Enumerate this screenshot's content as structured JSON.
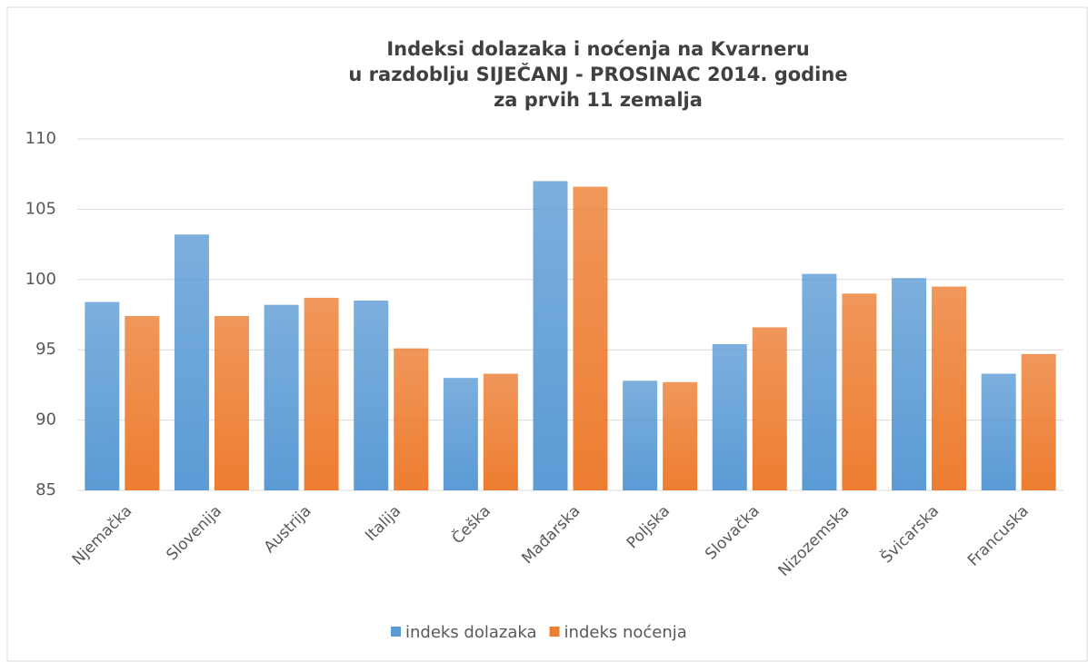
{
  "chart_data": {
    "type": "bar",
    "title": [
      "Indeksi dolazaka i noćenja na Kvarneru",
      "u razdoblju SIJEČANJ - PROSINAC 2014. godine",
      "za prvih 11 zemalja"
    ],
    "categories": [
      "Njemačka",
      "Slovenija",
      "Austrija",
      "Italija",
      "Češka",
      "Mađarska",
      "Poljska",
      "Slovačka",
      "Nizozemska",
      "Švicarska",
      "Francuska"
    ],
    "series": [
      {
        "name": "indeks dolazaka",
        "color": "#5b9bd5",
        "values": [
          98.4,
          103.2,
          98.2,
          98.5,
          93.0,
          107.0,
          92.8,
          95.4,
          100.4,
          100.1,
          93.3
        ]
      },
      {
        "name": "indeks noćenja",
        "color": "#ed7d31",
        "values": [
          97.4,
          97.4,
          98.7,
          95.1,
          93.3,
          106.6,
          92.7,
          96.6,
          99.0,
          99.5,
          94.7
        ]
      }
    ],
    "ylim": [
      85,
      110
    ],
    "yticks": [
      85,
      90,
      95,
      100,
      105,
      110
    ],
    "grid": true,
    "legend": "bottom"
  }
}
